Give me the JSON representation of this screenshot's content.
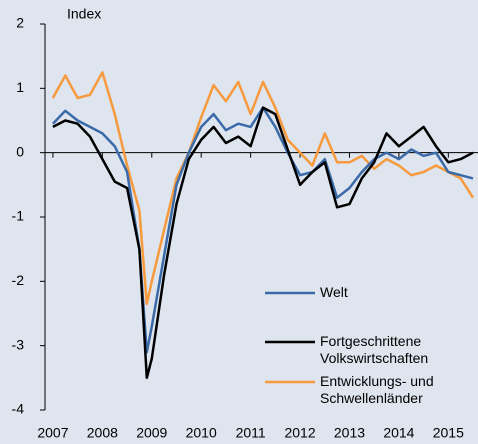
{
  "chart_data": {
    "type": "line",
    "ylabel": "Index",
    "x": [
      2007,
      2007.25,
      2007.5,
      2007.75,
      2008,
      2008.25,
      2008.5,
      2008.75,
      2008.9,
      2009,
      2009.25,
      2009.5,
      2009.75,
      2010,
      2010.25,
      2010.5,
      2010.75,
      2011,
      2011.25,
      2011.5,
      2011.75,
      2012,
      2012.25,
      2012.5,
      2012.75,
      2013,
      2013.25,
      2013.5,
      2013.75,
      2014,
      2014.25,
      2014.5,
      2014.75,
      2015,
      2015.25,
      2015.5
    ],
    "series": [
      {
        "name": "Welt",
        "color": "#3a6aa8",
        "values": [
          0.45,
          0.65,
          0.5,
          0.4,
          0.3,
          0.1,
          -0.3,
          -1.5,
          -3.1,
          -2.7,
          -1.6,
          -0.5,
          0.0,
          0.4,
          0.6,
          0.35,
          0.45,
          0.4,
          0.7,
          0.4,
          0.0,
          -0.35,
          -0.3,
          -0.1,
          -0.7,
          -0.55,
          -0.3,
          -0.1,
          0.0,
          -0.1,
          0.05,
          -0.05,
          0.0,
          -0.3,
          -0.35,
          -0.4
        ]
      },
      {
        "name": "Fortgeschrittene Volkswirtschaften",
        "color": "#000000",
        "values": [
          0.4,
          0.5,
          0.45,
          0.25,
          -0.1,
          -0.45,
          -0.55,
          -1.5,
          -3.5,
          -3.2,
          -1.9,
          -0.8,
          -0.1,
          0.2,
          0.4,
          0.15,
          0.25,
          0.1,
          0.7,
          0.6,
          0.05,
          -0.5,
          -0.3,
          -0.15,
          -0.85,
          -0.8,
          -0.4,
          -0.15,
          0.3,
          0.1,
          0.25,
          0.4,
          0.1,
          -0.15,
          -0.1,
          0.0
        ]
      },
      {
        "name": "Entwicklungs- und Schwellenländer",
        "color": "#f79a3e",
        "values": [
          0.85,
          1.2,
          0.85,
          0.9,
          1.25,
          0.6,
          -0.2,
          -0.9,
          -2.35,
          -2.0,
          -1.2,
          -0.4,
          0.0,
          0.55,
          1.05,
          0.8,
          1.1,
          0.6,
          1.1,
          0.7,
          0.2,
          0.0,
          -0.2,
          0.3,
          -0.15,
          -0.15,
          -0.05,
          -0.25,
          -0.1,
          -0.2,
          -0.35,
          -0.3,
          -0.2,
          -0.3,
          -0.4,
          -0.7
        ]
      }
    ],
    "xlim": [
      2006.88,
      2015.56
    ],
    "xticks": [
      2007,
      2008,
      2009,
      2010,
      2011,
      2012,
      2013,
      2014,
      2015
    ],
    "ylim": [
      -4,
      2
    ],
    "yticks": [
      -4,
      -3,
      -2,
      -1,
      0,
      1,
      2
    ]
  }
}
